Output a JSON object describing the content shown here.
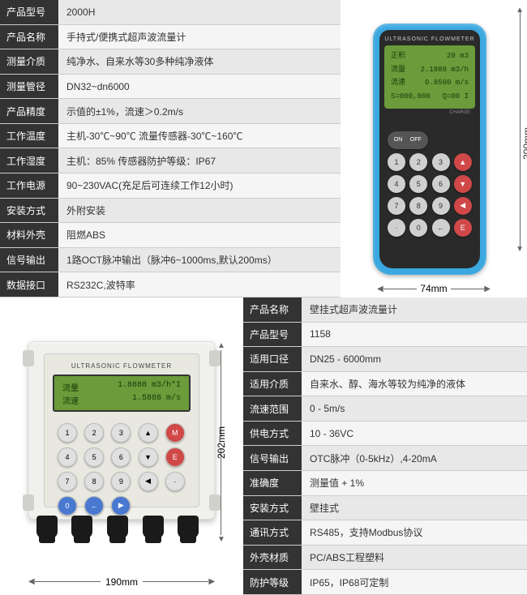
{
  "section1": {
    "specs": [
      {
        "label": "产品型号",
        "value": "2000H"
      },
      {
        "label": "产品名称",
        "value": "手持式/便携式超声波流量计"
      },
      {
        "label": "测量介质",
        "value": "纯净水、自来水等30多种纯净液体"
      },
      {
        "label": "测量管径",
        "value": "DN32~dn6000"
      },
      {
        "label": "产品精度",
        "value": "示值的±1%，流速＞0.2m/s"
      },
      {
        "label": "工作温度",
        "value": "主机-30℃~90℃  流量传感器-30℃~160℃"
      },
      {
        "label": "工作湿度",
        "value": "主机：85%  传感器防护等级：IP67"
      },
      {
        "label": "工作电源",
        "value": "90~230VAC(充足后可连续工作12小时)"
      },
      {
        "label": "安装方式",
        "value": "外附安装"
      },
      {
        "label": "材料外壳",
        "value": "阻燃ABS"
      },
      {
        "label": "信号输出",
        "value": "1路OCT脉冲输出（脉冲6~1000ms,默认200ms）"
      },
      {
        "label": "数据接口",
        "value": "RS232C,波特率"
      }
    ],
    "device": {
      "title": "ULTRASONIC FLOWMETER",
      "body_color": "#3ba8e0",
      "screen_color": "#6b9b3a",
      "screen": [
        {
          "l": "正积",
          "r": "20 m3"
        },
        {
          "l": "流量",
          "r": "2.1888 m3/h"
        },
        {
          "l": "流速",
          "r": "0.8500 m/s"
        },
        {
          "l": "S=000,000",
          "r": "Q=00 I"
        }
      ],
      "indicator": "CHARGE",
      "keys_row1": [
        "ON",
        "OFF"
      ],
      "keys": [
        "1",
        "2",
        "3",
        "▲",
        "4",
        "5",
        "6",
        "▼",
        "7",
        "8",
        "9",
        "◀",
        "·",
        "0",
        "←",
        "E"
      ],
      "dims": {
        "h": "200mm",
        "w": "74mm"
      }
    }
  },
  "section2": {
    "specs": [
      {
        "label": "产品名称",
        "value": "壁挂式超声波流量计"
      },
      {
        "label": "产品型号",
        "value": "1158"
      },
      {
        "label": "适用口径",
        "value": "DN25 - 6000mm"
      },
      {
        "label": "适用介质",
        "value": "自来水、醇、海水等较为纯净的液体"
      },
      {
        "label": "流速范围",
        "value": "0 - 5m/s"
      },
      {
        "label": "供电方式",
        "value": "10 - 36VC"
      },
      {
        "label": "信号输出",
        "value": "OTC脉冲（0-5kHz）,4-20mA"
      },
      {
        "label": "准确度",
        "value": "测量值 + 1%"
      },
      {
        "label": "安装方式",
        "value": "壁挂式"
      },
      {
        "label": "通讯方式",
        "value": "RS485，支持Modbus协议"
      },
      {
        "label": "外壳材质",
        "value": "PC/ABS工程塑料"
      },
      {
        "label": "防护等级",
        "value": "IP65，IP68可定制"
      }
    ],
    "device": {
      "title": "ULTRASONIC FLOWMETER",
      "body_color": "#f0f0ec",
      "screen_color": "#6b9b3a",
      "screen": [
        {
          "l": "流量",
          "r": "1.8888 m3/h*I"
        },
        {
          "l": "流速",
          "r": "1.5888 m/s"
        }
      ],
      "keys": [
        "1",
        "2",
        "3",
        "▲",
        "M",
        "4",
        "5",
        "6",
        "▼",
        "E",
        "7",
        "8",
        "9",
        "◀",
        "·",
        "0",
        "←",
        "▶",
        "",
        ""
      ],
      "glands": 5,
      "dims": {
        "h": "202mm",
        "w": "190mm"
      }
    }
  }
}
